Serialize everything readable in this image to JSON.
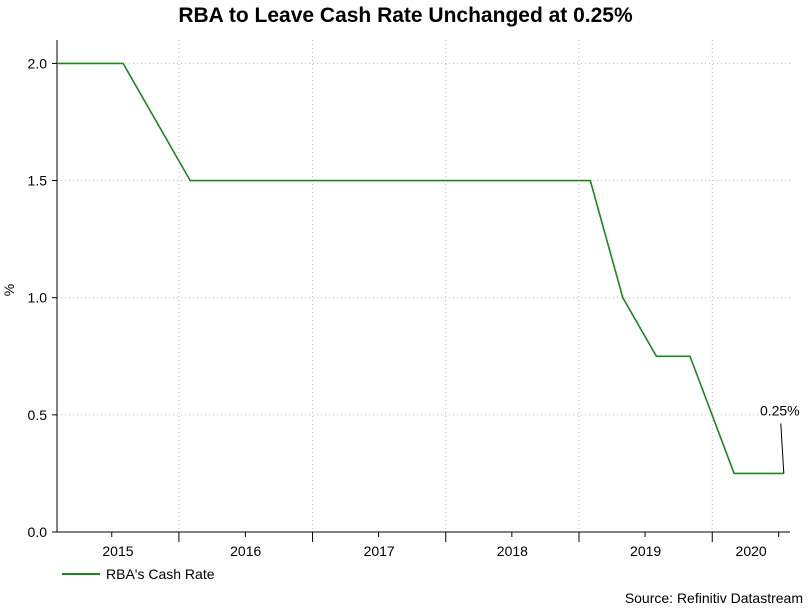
{
  "title": "RBA to Leave Cash Rate Unchanged at 0.25%",
  "source": "Source: Refinitiv Datastream",
  "colors": {
    "series": "#1a8a1a",
    "grid": "#bdbdbd",
    "axis": "#000000"
  },
  "chart_data": {
    "type": "line",
    "title": "RBA to Leave Cash Rate Unchanged at 0.25%",
    "xlabel": "",
    "ylabel": "%",
    "ylim": [
      0,
      2.1
    ],
    "y_ticks": [
      0.0,
      0.5,
      1.0,
      1.5,
      2.0
    ],
    "y_tick_labels": [
      "0.0",
      "0.5",
      "1.0",
      "1.5",
      "2.0"
    ],
    "x_tick_labels": [
      "2015",
      "2016",
      "2017",
      "2018",
      "2019",
      "2020"
    ],
    "xlim": [
      "2015-02-01",
      "2020-08-01"
    ],
    "grid": true,
    "legend": "bottom-left",
    "series": [
      {
        "name": "RBA's Cash Rate",
        "x": [
          "2015-02-01",
          "2015-08-01",
          "2016-02-01",
          "2019-02-01",
          "2019-05-01",
          "2019-08-01",
          "2019-11-01",
          "2020-03-01",
          "2020-07-15"
        ],
        "values": [
          2.0,
          2.0,
          1.5,
          1.5,
          1.0,
          0.75,
          0.75,
          0.25,
          0.25
        ]
      }
    ],
    "annotations": [
      {
        "text": "0.25%",
        "x": "2020-07-15",
        "y": 0.25
      }
    ]
  }
}
